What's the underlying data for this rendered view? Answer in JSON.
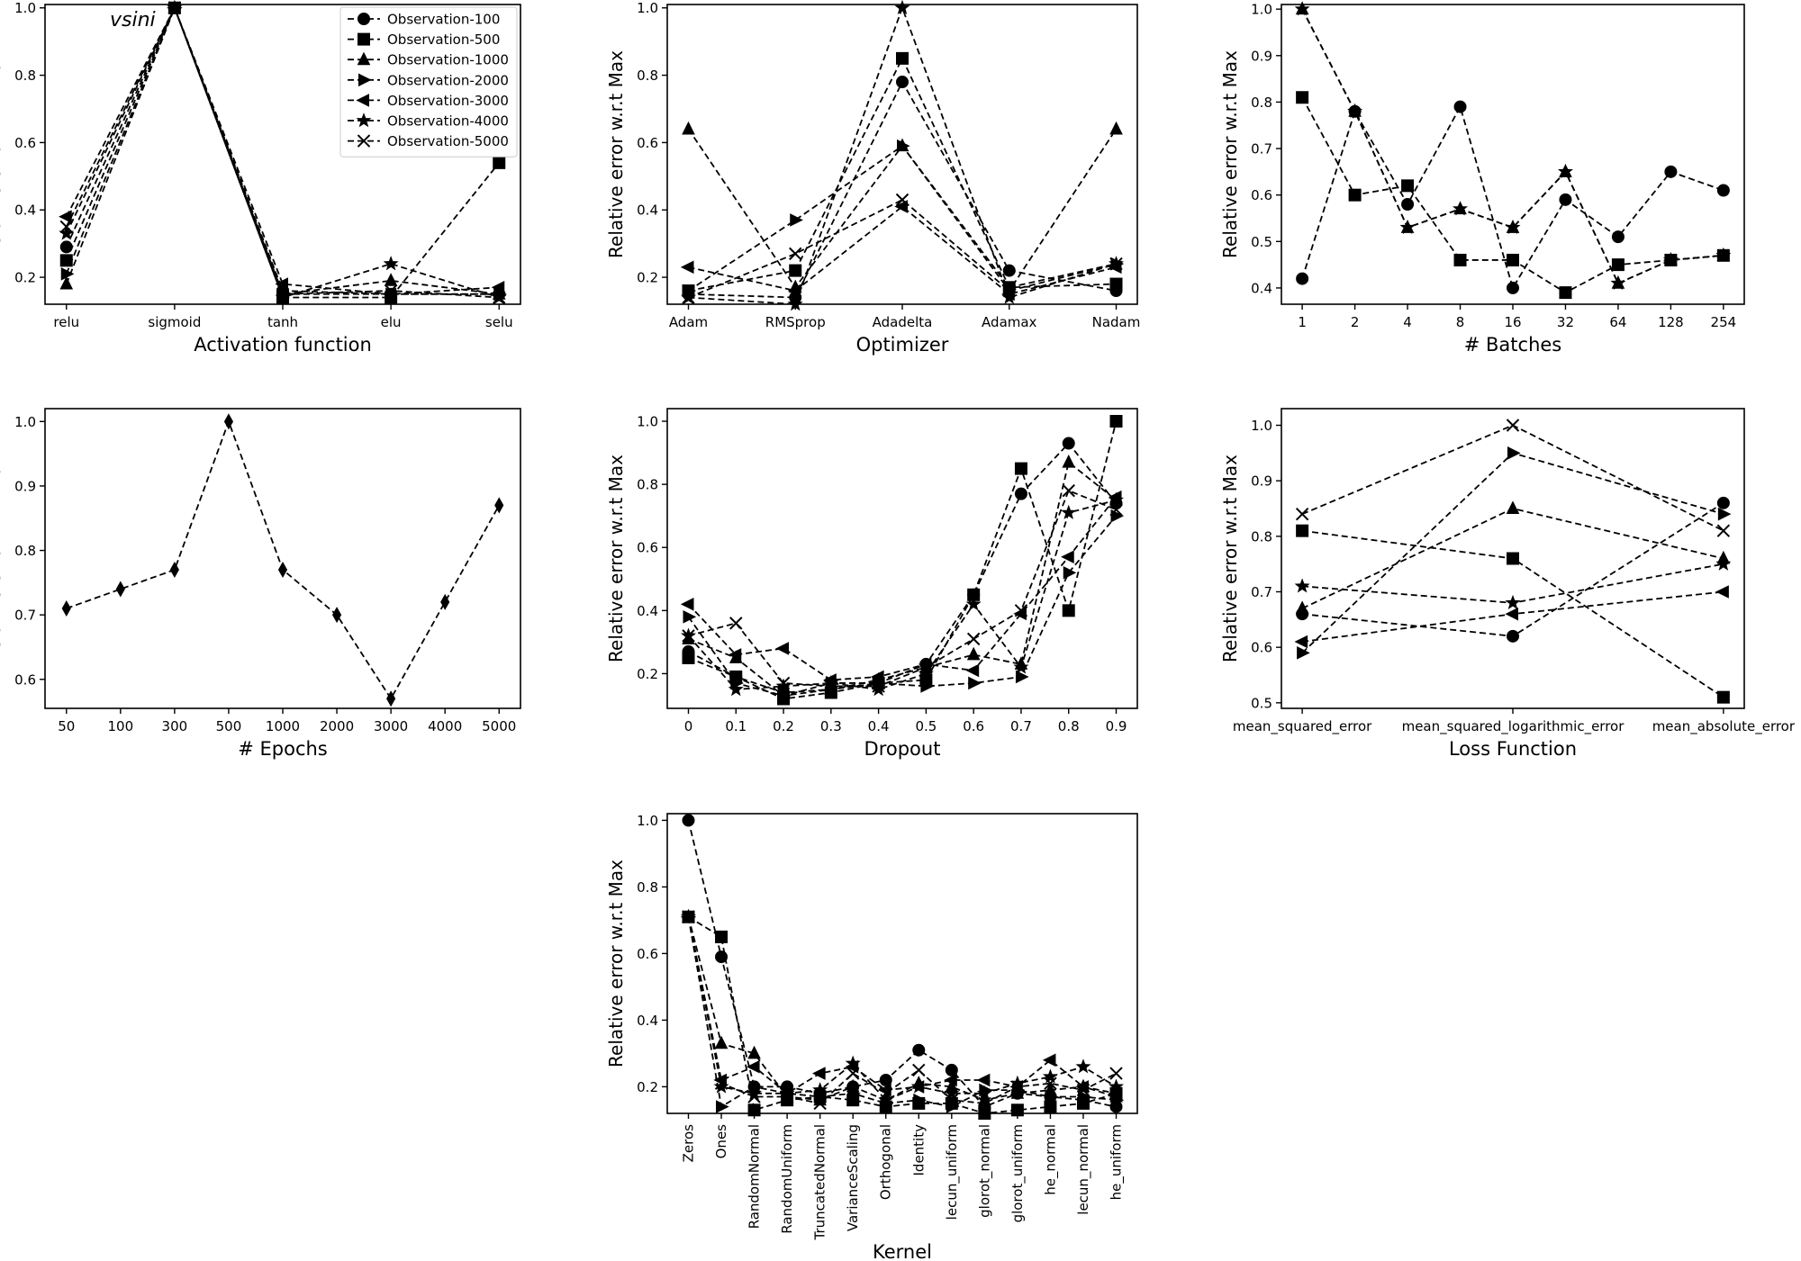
{
  "figure_annotation": "vsini",
  "legend": {
    "placement": "top-right of first panel",
    "entries": [
      "Observation-100",
      "Observation-500",
      "Observation-1000",
      "Observation-2000",
      "Observation-3000",
      "Observation-4000",
      "Observation-5000"
    ]
  },
  "chart_data": [
    {
      "type": "line",
      "id": "activation",
      "xlabel": "Activation function",
      "ylabel": "Relative error w.r.t Max",
      "categories": [
        "relu",
        "sigmoid",
        "tanh",
        "elu",
        "selu"
      ],
      "ylim": [
        0.12,
        1.01
      ],
      "yticks": [
        0.2,
        0.4,
        0.6,
        0.8,
        1.0
      ],
      "show_legend": true,
      "annotation": "vsini",
      "series": [
        {
          "name": "Observation-100",
          "marker": "circle",
          "values": [
            0.29,
            1.0,
            0.16,
            0.15,
            0.15
          ]
        },
        {
          "name": "Observation-500",
          "marker": "square",
          "values": [
            0.25,
            1.0,
            0.14,
            0.14,
            0.54
          ]
        },
        {
          "name": "Observation-1000",
          "marker": "triangle-up",
          "values": [
            0.18,
            1.0,
            0.15,
            0.19,
            0.15
          ]
        },
        {
          "name": "Observation-2000",
          "marker": "triangle-right",
          "values": [
            0.21,
            1.0,
            0.15,
            0.15,
            0.15
          ]
        },
        {
          "name": "Observation-3000",
          "marker": "triangle-left",
          "values": [
            0.38,
            1.0,
            0.18,
            0.15,
            0.17
          ]
        },
        {
          "name": "Observation-4000",
          "marker": "star",
          "values": [
            0.33,
            1.0,
            0.14,
            0.24,
            0.14
          ]
        },
        {
          "name": "Observation-5000",
          "marker": "x",
          "values": [
            0.35,
            1.0,
            0.15,
            0.16,
            0.14
          ]
        }
      ]
    },
    {
      "type": "line",
      "id": "optimizer",
      "xlabel": "Optimizer",
      "ylabel": "Relative error w.r.t Max",
      "categories": [
        "Adam",
        "RMSprop",
        "Adadelta",
        "Adamax",
        "Nadam"
      ],
      "ylim": [
        0.12,
        1.01
      ],
      "yticks": [
        0.2,
        0.4,
        0.6,
        0.8,
        1.0
      ],
      "series": [
        {
          "name": "Observation-100",
          "marker": "circle",
          "values": [
            0.15,
            0.14,
            0.78,
            0.22,
            0.16
          ]
        },
        {
          "name": "Observation-500",
          "marker": "square",
          "values": [
            0.16,
            0.22,
            0.85,
            0.17,
            0.18
          ]
        },
        {
          "name": "Observation-1000",
          "marker": "triangle-up",
          "values": [
            0.64,
            0.17,
            0.59,
            0.16,
            0.64
          ]
        },
        {
          "name": "Observation-2000",
          "marker": "triangle-right",
          "values": [
            0.16,
            0.37,
            0.59,
            0.17,
            0.24
          ]
        },
        {
          "name": "Observation-3000",
          "marker": "triangle-left",
          "values": [
            0.23,
            0.16,
            0.41,
            0.15,
            0.23
          ]
        },
        {
          "name": "Observation-4000",
          "marker": "star",
          "values": [
            0.14,
            0.12,
            1.0,
            0.14,
            0.24
          ]
        },
        {
          "name": "Observation-5000",
          "marker": "x",
          "values": [
            0.14,
            0.27,
            0.43,
            0.16,
            0.24
          ]
        }
      ]
    },
    {
      "type": "line",
      "id": "batches",
      "xlabel": "# Batches",
      "ylabel": "Relative error w.r.t Max",
      "categories": [
        "1",
        "2",
        "4",
        "8",
        "16",
        "32",
        "64",
        "128",
        "254"
      ],
      "ylim": [
        0.365,
        1.01
      ],
      "yticks": [
        0.4,
        0.5,
        0.6,
        0.7,
        0.8,
        0.9,
        1.0
      ],
      "series": [
        {
          "name": "Observation-100",
          "marker": "circle",
          "values": [
            0.42,
            0.78,
            0.58,
            0.79,
            0.4,
            0.59,
            0.51,
            0.65,
            0.61
          ]
        },
        {
          "name": "Observation-500",
          "marker": "square",
          "values": [
            0.81,
            0.6,
            0.62,
            0.46,
            0.46,
            0.39,
            0.45,
            0.46,
            0.47
          ]
        },
        {
          "name": "Observation-1000",
          "marker": "triangle-up",
          "values": [
            1.0,
            0.78,
            0.53,
            0.57,
            0.53,
            0.65,
            0.41,
            0.46,
            0.47
          ]
        },
        {
          "name": "Observation-4000",
          "marker": "star",
          "values": [
            1.0,
            0.78,
            0.53,
            0.57,
            0.53,
            0.65,
            0.41,
            0.46,
            0.47
          ]
        }
      ]
    },
    {
      "type": "line",
      "id": "epochs",
      "xlabel": "# Epochs",
      "ylabel": "Relative error w.r.t Max",
      "categories": [
        "50",
        "100",
        "300",
        "500",
        "1000",
        "2000",
        "3000",
        "4000",
        "5000"
      ],
      "ylim": [
        0.555,
        1.02
      ],
      "yticks": [
        0.6,
        0.7,
        0.8,
        0.9,
        1.0
      ],
      "series": [
        {
          "name": "Epochs",
          "marker": "diamond",
          "values": [
            0.71,
            0.74,
            0.77,
            1.0,
            0.77,
            0.7,
            0.57,
            0.72,
            0.87
          ]
        }
      ]
    },
    {
      "type": "line",
      "id": "dropout",
      "xlabel": "Dropout",
      "ylabel": "Relative error w.r.t Max",
      "categories": [
        "0",
        "0.1",
        "0.2",
        "0.3",
        "0.4",
        "0.5",
        "0.6",
        "0.7",
        "0.8",
        "0.9"
      ],
      "ylim": [
        0.09,
        1.04
      ],
      "yticks": [
        0.2,
        0.4,
        0.6,
        0.8,
        1.0
      ],
      "series": [
        {
          "name": "Observation-100",
          "marker": "circle",
          "values": [
            0.27,
            0.19,
            0.14,
            0.15,
            0.17,
            0.23,
            0.45,
            0.77,
            0.93,
            0.74
          ]
        },
        {
          "name": "Observation-500",
          "marker": "square",
          "values": [
            0.25,
            0.19,
            0.12,
            0.14,
            0.17,
            0.18,
            0.45,
            0.85,
            0.4,
            1.0
          ]
        },
        {
          "name": "Observation-1000",
          "marker": "triangle-up",
          "values": [
            0.31,
            0.25,
            0.13,
            0.15,
            0.18,
            0.22,
            0.26,
            0.23,
            0.87,
            0.75
          ]
        },
        {
          "name": "Observation-2000",
          "marker": "triangle-right",
          "values": [
            0.38,
            0.17,
            0.13,
            0.17,
            0.17,
            0.16,
            0.17,
            0.19,
            0.52,
            0.7
          ]
        },
        {
          "name": "Observation-3000",
          "marker": "triangle-left",
          "values": [
            0.42,
            0.26,
            0.28,
            0.18,
            0.19,
            0.23,
            0.21,
            0.39,
            0.57,
            0.76
          ]
        },
        {
          "name": "Observation-4000",
          "marker": "star",
          "values": [
            0.32,
            0.15,
            0.16,
            0.17,
            0.15,
            0.2,
            0.42,
            0.22,
            0.71,
            0.75
          ]
        },
        {
          "name": "Observation-5000",
          "marker": "x",
          "values": [
            0.32,
            0.36,
            0.17,
            0.16,
            0.16,
            0.22,
            0.31,
            0.4,
            0.78,
            0.72
          ]
        }
      ]
    },
    {
      "type": "line",
      "id": "loss",
      "xlabel": "Loss Function",
      "ylabel": "Relative error w.r.t Max",
      "categories": [
        "mean_squared_error",
        "mean_squared_logarithmic_error",
        "mean_absolute_error"
      ],
      "ylim": [
        0.49,
        1.03
      ],
      "yticks": [
        0.5,
        0.6,
        0.7,
        0.8,
        0.9,
        1.0
      ],
      "series": [
        {
          "name": "Observation-100",
          "marker": "circle",
          "values": [
            0.66,
            0.62,
            0.86
          ]
        },
        {
          "name": "Observation-500",
          "marker": "square",
          "values": [
            0.81,
            0.76,
            0.51
          ]
        },
        {
          "name": "Observation-1000",
          "marker": "triangle-up",
          "values": [
            0.67,
            0.85,
            0.76
          ]
        },
        {
          "name": "Observation-2000",
          "marker": "triangle-right",
          "values": [
            0.59,
            0.95,
            0.84
          ]
        },
        {
          "name": "Observation-3000",
          "marker": "triangle-left",
          "values": [
            0.61,
            0.66,
            0.7
          ]
        },
        {
          "name": "Observation-4000",
          "marker": "star",
          "values": [
            0.71,
            0.68,
            0.75
          ]
        },
        {
          "name": "Observation-5000",
          "marker": "x",
          "values": [
            0.84,
            1.0,
            0.81
          ]
        }
      ]
    },
    {
      "type": "line",
      "id": "kernel",
      "xlabel": "Kernel",
      "ylabel": "Relative error w.r.t Max",
      "rotate_xticks": true,
      "categories": [
        "Zeros",
        "Ones",
        "RandomNormal",
        "RandomUniform",
        "TruncatedNormal",
        "VarianceScaling",
        "Orthogonal",
        "Identity",
        "lecun_uniform",
        "glorot_normal",
        "glorot_uniform",
        "he_normal",
        "lecun_normal",
        "he_uniform"
      ],
      "ylim": [
        0.12,
        1.02
      ],
      "yticks": [
        0.2,
        0.4,
        0.6,
        0.8,
        1.0
      ],
      "series": [
        {
          "name": "Observation-100",
          "marker": "circle",
          "values": [
            1.0,
            0.59,
            0.2,
            0.2,
            0.18,
            0.2,
            0.22,
            0.31,
            0.25,
            0.14,
            0.18,
            0.17,
            0.16,
            0.14
          ]
        },
        {
          "name": "Observation-500",
          "marker": "square",
          "values": [
            0.71,
            0.65,
            0.13,
            0.16,
            0.17,
            0.16,
            0.14,
            0.15,
            0.15,
            0.12,
            0.13,
            0.14,
            0.15,
            0.18
          ]
        },
        {
          "name": "Observation-1000",
          "marker": "triangle-up",
          "values": [
            0.71,
            0.33,
            0.3,
            0.17,
            0.16,
            0.2,
            0.16,
            0.21,
            0.2,
            0.16,
            0.18,
            0.19,
            0.2,
            0.17
          ]
        },
        {
          "name": "Observation-2000",
          "marker": "triangle-right",
          "values": [
            0.71,
            0.14,
            0.2,
            0.18,
            0.17,
            0.18,
            0.15,
            0.16,
            0.14,
            0.19,
            0.19,
            0.17,
            0.17,
            0.16
          ]
        },
        {
          "name": "Observation-3000",
          "marker": "triangle-left",
          "values": [
            0.71,
            0.22,
            0.26,
            0.18,
            0.24,
            0.26,
            0.19,
            0.2,
            0.22,
            0.22,
            0.2,
            0.28,
            0.2,
            0.18
          ]
        },
        {
          "name": "Observation-4000",
          "marker": "star",
          "values": [
            0.71,
            0.2,
            0.18,
            0.18,
            0.19,
            0.27,
            0.16,
            0.2,
            0.18,
            0.18,
            0.21,
            0.23,
            0.26,
            0.2
          ]
        },
        {
          "name": "Observation-5000",
          "marker": "x",
          "values": [
            0.71,
            0.21,
            0.17,
            0.17,
            0.15,
            0.24,
            0.18,
            0.25,
            0.16,
            0.15,
            0.2,
            0.21,
            0.19,
            0.24
          ]
        }
      ]
    }
  ]
}
